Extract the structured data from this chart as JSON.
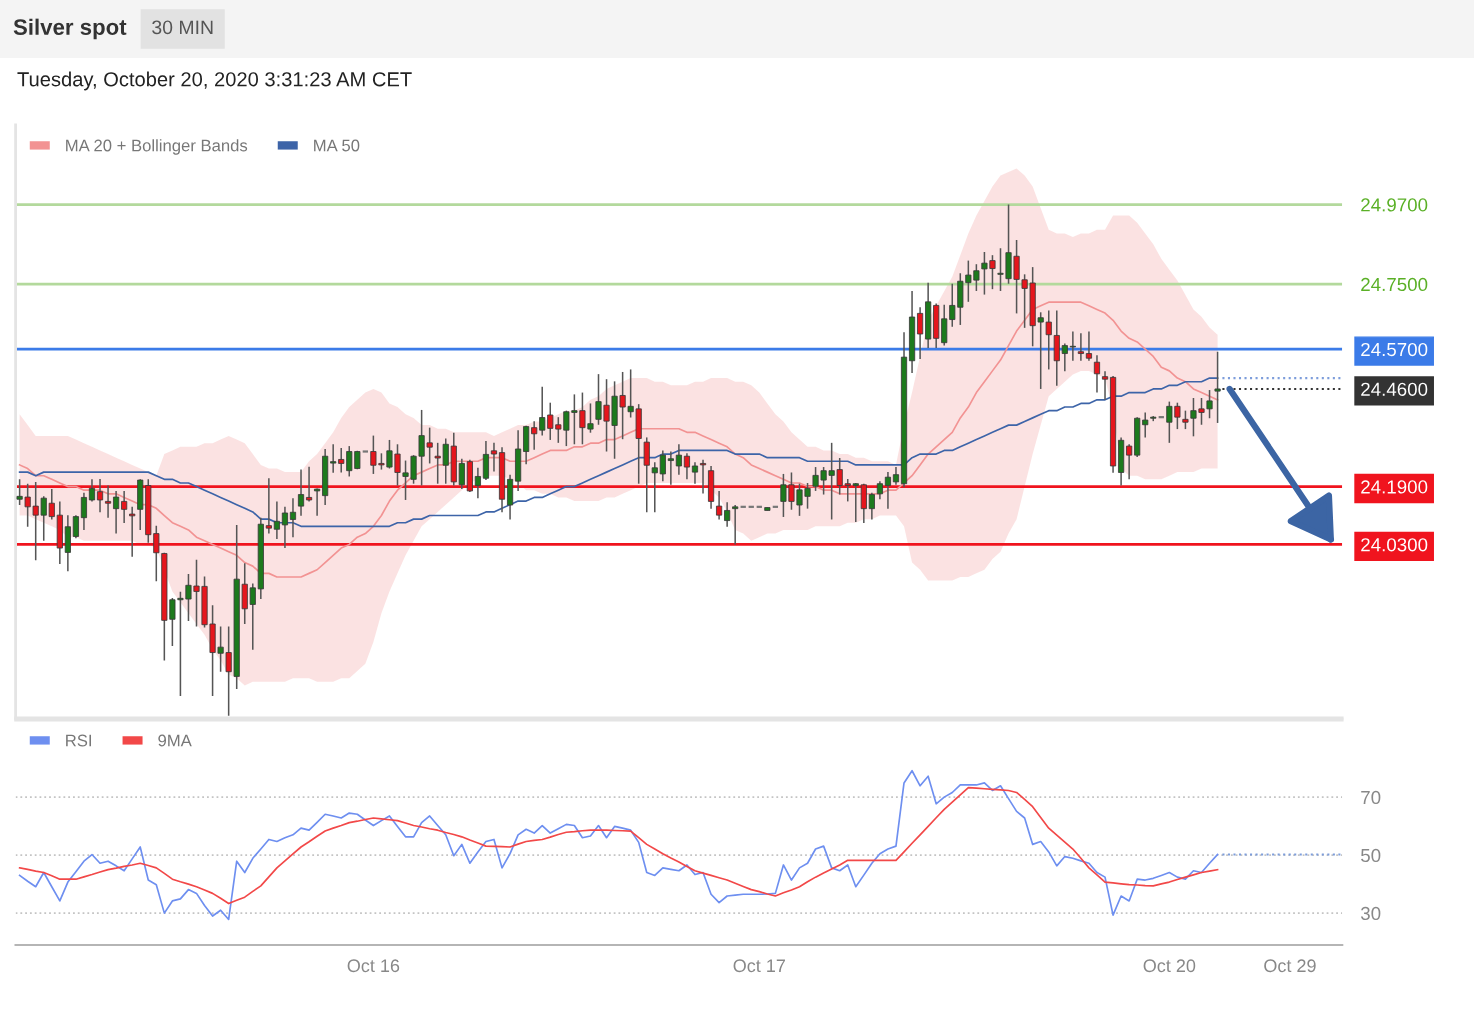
{
  "chart_data": [
    {
      "type": "candlestick",
      "title": "Silver spot",
      "subtitle": "Tuesday, October 20, 2020 3:31:23 AM CET",
      "annotations": [
        "30 MIN"
      ],
      "categories": [
        null,
        null,
        null,
        null,
        null,
        null,
        null,
        null,
        null,
        null,
        null,
        null,
        null,
        null,
        null,
        null,
        null,
        null,
        null,
        null,
        null,
        null,
        null,
        null,
        null,
        null,
        null,
        null,
        null,
        null,
        null,
        null,
        null,
        null,
        null,
        null,
        null,
        null,
        null,
        null,
        null,
        null,
        null,
        null,
        "Oct 16",
        null,
        null,
        null,
        null,
        null,
        null,
        null,
        null,
        null,
        null,
        null,
        null,
        null,
        null,
        null,
        null,
        null,
        null,
        null,
        null,
        null,
        null,
        null,
        null,
        null,
        null,
        null,
        null,
        null,
        null,
        null,
        null,
        null,
        null,
        null,
        null,
        null,
        null,
        null,
        null,
        null,
        null,
        null,
        null,
        null,
        null,
        null,
        "Oct 17",
        null,
        null,
        null,
        null,
        null,
        null,
        null,
        null,
        null,
        null,
        null,
        null,
        null,
        null,
        null,
        null,
        null,
        null,
        null,
        null,
        null,
        null,
        null,
        null,
        null,
        null,
        null,
        null,
        null,
        null,
        null,
        null,
        null,
        null,
        null,
        null,
        null,
        null,
        null,
        null,
        null,
        null,
        null,
        null,
        null,
        null,
        null,
        null,
        null,
        null,
        "Oct 20",
        null,
        null,
        null,
        null,
        null,
        null,
        null,
        null,
        null,
        null,
        null,
        null,
        null,
        null,
        "Oct 29",
        null,
        null,
        null,
        null,
        null,
        null
      ],
      "ohlc": [
        [
          24.155,
          24.21,
          24.139,
          24.163
        ],
        [
          24.161,
          24.198,
          24.079,
          24.134
        ],
        [
          24.136,
          24.203,
          23.986,
          24.111
        ],
        [
          24.111,
          24.163,
          24.04,
          24.158
        ],
        [
          24.144,
          24.183,
          24.099,
          24.107
        ],
        [
          24.111,
          24.149,
          23.976,
          24.02
        ],
        [
          24.008,
          24.111,
          23.956,
          24.079
        ],
        [
          24.052,
          24.111,
          24.047,
          24.107
        ],
        [
          24.104,
          24.173,
          24.07,
          24.16
        ],
        [
          24.153,
          24.21,
          24.149,
          24.185
        ],
        [
          24.176,
          24.211,
          24.119,
          24.153
        ],
        [
          24.149,
          24.193,
          24.104,
          24.144
        ],
        [
          24.129,
          24.178,
          24.06,
          24.161
        ],
        [
          24.149,
          24.178,
          24.089,
          24.127
        ],
        [
          24.114,
          24.134,
          23.996,
          24.109
        ],
        [
          24.127,
          24.21,
          24.07,
          24.208
        ],
        [
          24.193,
          24.21,
          24.035,
          24.057
        ],
        [
          24.06,
          24.082,
          23.928,
          24.007
        ],
        [
          24.005,
          24.007,
          23.709,
          23.82
        ],
        [
          23.823,
          23.882,
          23.749,
          23.877
        ],
        [
          23.877,
          23.899,
          23.611,
          23.881
        ],
        [
          23.879,
          23.948,
          23.818,
          23.917
        ],
        [
          23.915,
          23.988,
          23.803,
          23.9
        ],
        [
          23.914,
          23.941,
          23.8,
          23.808
        ],
        [
          23.81,
          23.862,
          23.611,
          23.731
        ],
        [
          23.729,
          23.803,
          23.678,
          23.746
        ],
        [
          23.731,
          23.803,
          23.556,
          23.678
        ],
        [
          23.665,
          24.084,
          23.63,
          23.934
        ],
        [
          23.92,
          23.978,
          23.81,
          23.852
        ],
        [
          23.864,
          23.922,
          23.739,
          23.91
        ],
        [
          23.907,
          24.104,
          23.879,
          24.086
        ],
        [
          24.082,
          24.213,
          24.06,
          24.075
        ],
        [
          24.072,
          24.149,
          24.045,
          24.094
        ],
        [
          24.084,
          24.134,
          24.02,
          24.117
        ],
        [
          24.099,
          24.158,
          24.05,
          24.119
        ],
        [
          24.136,
          24.237,
          24.109,
          24.168
        ],
        [
          24.16,
          24.245,
          24.149,
          24.153
        ],
        [
          24.178,
          24.185,
          24.109,
          24.183
        ],
        [
          24.165,
          24.294,
          24.139,
          24.274
        ],
        [
          24.255,
          24.307,
          24.228,
          24.259
        ],
        [
          24.265,
          24.297,
          24.229,
          24.254
        ],
        [
          24.234,
          24.302,
          24.218,
          24.287
        ],
        [
          24.24,
          24.289,
          24.238,
          24.287
        ],
        [
          24.287,
          24.287,
          24.287,
          24.287
        ],
        [
          24.287,
          24.331,
          24.225,
          24.249
        ],
        [
          24.254,
          24.282,
          24.237,
          24.25
        ],
        [
          24.244,
          24.319,
          24.24,
          24.289
        ],
        [
          24.28,
          24.307,
          24.193,
          24.229
        ],
        [
          24.218,
          24.262,
          24.153,
          24.228
        ],
        [
          24.21,
          24.277,
          24.198,
          24.274
        ],
        [
          24.274,
          24.402,
          24.193,
          24.331
        ],
        [
          24.311,
          24.353,
          24.254,
          24.299
        ],
        [
          24.274,
          24.311,
          24.198,
          24.269
        ],
        [
          24.249,
          24.323,
          24.198,
          24.307
        ],
        [
          24.302,
          24.339,
          24.193,
          24.203
        ],
        [
          24.195,
          24.267,
          24.183,
          24.254
        ],
        [
          24.259,
          24.264,
          24.175,
          24.178
        ],
        [
          24.193,
          24.242,
          24.158,
          24.218
        ],
        [
          24.213,
          24.316,
          24.208,
          24.279
        ],
        [
          24.289,
          24.311,
          24.232,
          24.28
        ],
        [
          24.284,
          24.299,
          24.119,
          24.155
        ],
        [
          24.139,
          24.223,
          24.099,
          24.21
        ],
        [
          24.205,
          24.346,
          24.178,
          24.294
        ],
        [
          24.287,
          24.358,
          24.252,
          24.356
        ],
        [
          24.353,
          24.371,
          24.292,
          24.336
        ],
        [
          24.346,
          24.466,
          24.331,
          24.381
        ],
        [
          24.388,
          24.422,
          24.319,
          24.351
        ],
        [
          24.361,
          24.382,
          24.311,
          24.349
        ],
        [
          24.346,
          24.4,
          24.302,
          24.397
        ],
        [
          24.395,
          24.445,
          24.307,
          24.4
        ],
        [
          24.4,
          24.45,
          24.307,
          24.353
        ],
        [
          24.349,
          24.42,
          24.339,
          24.364
        ],
        [
          24.376,
          24.501,
          24.361,
          24.425
        ],
        [
          24.415,
          24.487,
          24.287,
          24.371
        ],
        [
          24.359,
          24.481,
          24.267,
          24.44
        ],
        [
          24.442,
          24.507,
          24.321,
          24.41
        ],
        [
          24.397,
          24.514,
          24.381,
          24.412
        ],
        [
          24.405,
          24.418,
          24.198,
          24.323
        ],
        [
          24.313,
          24.326,
          24.119,
          24.249
        ],
        [
          24.228,
          24.257,
          24.119,
          24.242
        ],
        [
          24.225,
          24.29,
          24.205,
          24.277
        ],
        [
          24.262,
          24.287,
          24.195,
          24.267
        ],
        [
          24.247,
          24.307,
          24.223,
          24.277
        ],
        [
          24.274,
          24.282,
          24.21,
          24.244
        ],
        [
          24.23,
          24.257,
          24.198,
          24.247
        ],
        [
          24.254,
          24.264,
          24.171,
          24.25
        ],
        [
          24.234,
          24.247,
          24.129,
          24.149
        ],
        [
          24.136,
          24.178,
          24.099,
          24.111
        ],
        [
          24.096,
          24.147,
          24.079,
          24.124
        ],
        [
          24.129,
          24.139,
          24.03,
          24.134
        ],
        [
          24.134,
          24.134,
          24.134,
          24.134
        ],
        [
          24.134,
          24.134,
          24.134,
          24.134
        ],
        [
          24.134,
          24.134,
          24.134,
          24.134
        ],
        [
          24.124,
          24.132,
          24.124,
          24.132
        ],
        [
          24.134,
          24.134,
          24.134,
          24.134
        ],
        [
          24.149,
          24.225,
          24.106,
          24.195
        ],
        [
          24.195,
          24.229,
          24.126,
          24.149
        ],
        [
          24.139,
          24.198,
          24.109,
          24.181
        ],
        [
          24.163,
          24.2,
          24.129,
          24.185
        ],
        [
          24.191,
          24.244,
          24.178,
          24.221
        ],
        [
          24.208,
          24.244,
          24.168,
          24.234
        ],
        [
          24.221,
          24.311,
          24.099,
          24.234
        ],
        [
          24.237,
          24.269,
          24.168,
          24.193
        ],
        [
          24.198,
          24.211,
          24.149,
          24.193
        ],
        [
          24.193,
          24.2,
          24.092,
          24.198
        ],
        [
          24.195,
          24.198,
          24.089,
          24.129
        ],
        [
          24.129,
          24.173,
          24.099,
          24.168
        ],
        [
          24.17,
          24.205,
          24.155,
          24.198
        ],
        [
          24.193,
          24.23,
          24.129,
          24.216
        ],
        [
          24.203,
          24.244,
          24.195,
          24.223
        ],
        [
          24.198,
          24.617,
          24.188,
          24.548
        ],
        [
          24.538,
          24.731,
          24.504,
          24.659
        ],
        [
          24.669,
          24.686,
          24.543,
          24.612
        ],
        [
          24.598,
          24.754,
          24.573,
          24.701
        ],
        [
          24.691,
          24.696,
          24.573,
          24.6
        ],
        [
          24.588,
          24.693,
          24.58,
          24.654
        ],
        [
          24.652,
          24.751,
          24.632,
          24.691
        ],
        [
          24.686,
          24.78,
          24.637,
          24.758
        ],
        [
          24.754,
          24.815,
          24.701,
          24.775
        ],
        [
          24.761,
          24.805,
          24.731,
          24.787
        ],
        [
          24.792,
          24.839,
          24.721,
          24.808
        ],
        [
          24.815,
          24.83,
          24.736,
          24.793
        ],
        [
          24.777,
          24.849,
          24.731,
          24.78
        ],
        [
          24.765,
          24.97,
          24.751,
          24.837
        ],
        [
          24.827,
          24.872,
          24.669,
          24.763
        ],
        [
          24.762,
          24.777,
          24.629,
          24.738
        ],
        [
          24.753,
          24.797,
          24.578,
          24.635
        ],
        [
          24.645,
          24.672,
          24.46,
          24.657
        ],
        [
          24.645,
          24.677,
          24.514,
          24.61
        ],
        [
          24.608,
          24.677,
          24.469,
          24.538
        ],
        [
          24.558,
          24.586,
          24.509,
          24.58
        ],
        [
          24.576,
          24.619,
          24.538,
          24.578
        ],
        [
          24.563,
          24.614,
          24.538,
          24.558
        ],
        [
          24.558,
          24.619,
          24.538,
          24.545
        ],
        [
          24.534,
          24.553,
          24.45,
          24.502
        ],
        [
          24.494,
          24.509,
          24.43,
          24.487
        ],
        [
          24.492,
          24.496,
          24.228,
          24.247
        ],
        [
          24.229,
          24.326,
          24.193,
          24.318
        ],
        [
          24.302,
          24.307,
          24.21,
          24.277
        ],
        [
          24.277,
          24.382,
          24.272,
          24.379
        ],
        [
          24.361,
          24.395,
          24.326,
          24.374
        ],
        [
          24.379,
          24.385,
          24.371,
          24.382
        ],
        [
          24.382,
          24.382,
          24.382,
          24.382
        ],
        [
          24.368,
          24.425,
          24.311,
          24.412
        ],
        [
          24.412,
          24.422,
          24.349,
          24.382
        ],
        [
          24.376,
          24.4,
          24.349,
          24.368
        ],
        [
          24.379,
          24.435,
          24.329,
          24.4
        ],
        [
          24.405,
          24.435,
          24.361,
          24.395
        ],
        [
          24.405,
          24.457,
          24.379,
          24.427
        ],
        [
          24.454,
          24.563,
          24.366,
          24.46
        ],
        null,
        null,
        null,
        null,
        null,
        null,
        null,
        null,
        null,
        null,
        null,
        null,
        null,
        null,
        null
      ],
      "series": [
        {
          "name": "MA 20 + Bollinger Bands",
          "type": "line",
          "color": "#f29393",
          "values": [
            24.25,
            24.24,
            24.22,
            24.22,
            24.21,
            24.2,
            24.19,
            24.19,
            24.18,
            24.18,
            24.18,
            24.17,
            24.17,
            24.16,
            24.15,
            24.14,
            24.14,
            24.13,
            24.11,
            24.09,
            24.08,
            24.07,
            24.05,
            24.04,
            24.03,
            24.02,
            24.01,
            24.0,
            23.98,
            23.97,
            23.95,
            23.95,
            23.94,
            23.94,
            23.94,
            23.94,
            23.95,
            23.96,
            23.98,
            24.0,
            24.02,
            24.03,
            24.05,
            24.06,
            24.08,
            24.11,
            24.15,
            24.18,
            24.2,
            24.22,
            24.23,
            24.24,
            24.25,
            24.25,
            24.26,
            24.26,
            24.26,
            24.26,
            24.27,
            24.27,
            24.27,
            24.26,
            24.26,
            24.26,
            24.27,
            24.28,
            24.29,
            24.29,
            24.29,
            24.3,
            24.3,
            24.31,
            24.31,
            24.32,
            24.32,
            24.33,
            24.34,
            24.35,
            24.35,
            24.35,
            24.35,
            24.35,
            24.35,
            24.34,
            24.34,
            24.33,
            24.32,
            24.31,
            24.3,
            24.28,
            24.27,
            24.25,
            24.24,
            24.23,
            24.22,
            24.21,
            24.2,
            24.2,
            24.19,
            24.19,
            24.18,
            24.18,
            24.17,
            24.17,
            24.17,
            24.17,
            24.17,
            24.17,
            24.18,
            24.18,
            24.2,
            24.22,
            24.25,
            24.28,
            24.3,
            24.32,
            24.34,
            24.38,
            24.41,
            24.45,
            24.48,
            24.51,
            24.54,
            24.58,
            24.62,
            24.65,
            24.68,
            24.69,
            24.7,
            24.7,
            24.7,
            24.7,
            24.7,
            24.69,
            24.68,
            24.67,
            24.65,
            24.62,
            24.6,
            24.59,
            24.57,
            24.55,
            24.52,
            24.51,
            24.49,
            24.48,
            24.46,
            24.45,
            24.44,
            24.43,
            null,
            null,
            null,
            null,
            null,
            null,
            null,
            null,
            null,
            null,
            null,
            null,
            null,
            null,
            null
          ],
          "lower": [
            24.11,
            24.11,
            24.1,
            24.09,
            24.08,
            24.07,
            24.05,
            24.05,
            24.04,
            24.04,
            24.04,
            24.04,
            24.04,
            24.04,
            24.04,
            24.03,
            24.03,
            24.02,
            23.96,
            23.9,
            23.87,
            23.84,
            23.81,
            23.78,
            23.74,
            23.71,
            23.67,
            23.66,
            23.64,
            23.65,
            23.65,
            23.65,
            23.65,
            23.65,
            23.66,
            23.66,
            23.66,
            23.65,
            23.65,
            23.65,
            23.66,
            23.66,
            23.68,
            23.7,
            23.76,
            23.84,
            23.9,
            23.95,
            24.0,
            24.04,
            24.08,
            24.1,
            24.12,
            24.14,
            24.16,
            24.18,
            24.2,
            24.21,
            24.22,
            24.22,
            24.22,
            24.21,
            24.2,
            24.18,
            24.18,
            24.17,
            24.17,
            24.16,
            24.16,
            24.15,
            24.15,
            24.15,
            24.15,
            24.16,
            24.16,
            24.17,
            24.18,
            24.19,
            24.2,
            24.2,
            24.2,
            24.2,
            24.2,
            24.2,
            24.2,
            24.2,
            24.18,
            24.16,
            24.12,
            24.07,
            24.06,
            24.04,
            24.05,
            24.06,
            24.06,
            24.07,
            24.07,
            24.07,
            24.07,
            24.08,
            24.08,
            24.08,
            24.08,
            24.09,
            24.09,
            24.1,
            24.1,
            24.11,
            24.11,
            24.11,
            24.08,
            23.98,
            23.96,
            23.93,
            23.93,
            23.93,
            23.93,
            23.94,
            23.94,
            23.95,
            23.96,
            23.99,
            24.01,
            24.06,
            24.1,
            24.19,
            24.28,
            24.36,
            24.44,
            24.46,
            24.48,
            24.5,
            24.51,
            24.51,
            24.5,
            24.49,
            24.4,
            24.24,
            24.22,
            24.22,
            24.21,
            24.21,
            24.21,
            24.22,
            24.23,
            24.23,
            24.23,
            24.24,
            24.24,
            24.24,
            null,
            null,
            null,
            null,
            null,
            null,
            null,
            null,
            null,
            null,
            null,
            null,
            null,
            null,
            null
          ],
          "upper": [
            24.39,
            24.36,
            24.33,
            24.33,
            24.33,
            24.33,
            24.33,
            24.32,
            24.31,
            24.3,
            24.29,
            24.28,
            24.27,
            24.26,
            24.25,
            24.24,
            24.23,
            24.22,
            24.28,
            24.29,
            24.3,
            24.3,
            24.3,
            24.31,
            24.31,
            24.32,
            24.33,
            24.32,
            24.31,
            24.28,
            24.25,
            24.24,
            24.24,
            24.23,
            24.23,
            24.23,
            24.26,
            24.28,
            24.31,
            24.34,
            24.38,
            24.41,
            24.43,
            24.45,
            24.46,
            24.45,
            24.42,
            24.41,
            24.39,
            24.38,
            24.36,
            24.36,
            24.35,
            24.35,
            24.34,
            24.34,
            24.34,
            24.34,
            24.34,
            24.33,
            24.34,
            24.35,
            24.36,
            24.36,
            24.37,
            24.37,
            24.38,
            24.39,
            24.4,
            24.4,
            24.41,
            24.43,
            24.44,
            24.46,
            24.47,
            24.48,
            24.49,
            24.49,
            24.49,
            24.48,
            24.48,
            24.47,
            24.47,
            24.47,
            24.48,
            24.48,
            24.49,
            24.49,
            24.49,
            24.48,
            24.48,
            24.47,
            24.45,
            24.42,
            24.39,
            24.37,
            24.34,
            24.32,
            24.3,
            24.3,
            24.29,
            24.29,
            24.28,
            24.28,
            24.27,
            24.27,
            24.26,
            24.26,
            24.26,
            24.25,
            24.36,
            24.45,
            24.55,
            24.65,
            24.69,
            24.73,
            24.77,
            24.83,
            24.89,
            24.94,
            24.98,
            25.02,
            25.05,
            25.06,
            25.07,
            25.05,
            25.02,
            24.96,
            24.9,
            24.89,
            24.89,
            24.88,
            24.89,
            24.89,
            24.9,
            24.9,
            24.94,
            24.94,
            24.94,
            24.92,
            24.89,
            24.86,
            24.82,
            24.79,
            24.76,
            24.72,
            24.68,
            24.66,
            24.63,
            24.61,
            null,
            null,
            null,
            null,
            null,
            null,
            null,
            null,
            null,
            null,
            null,
            null,
            null,
            null,
            null
          ]
        },
        {
          "name": "MA 50",
          "type": "line",
          "color": "#3d64a8",
          "values": [
            24.23,
            24.23,
            24.22,
            24.23,
            24.23,
            24.23,
            24.23,
            24.23,
            24.23,
            24.23,
            24.23,
            24.23,
            24.23,
            24.23,
            24.23,
            24.23,
            24.23,
            24.22,
            24.21,
            24.21,
            24.2,
            24.2,
            24.19,
            24.18,
            24.17,
            24.16,
            24.15,
            24.14,
            24.13,
            24.12,
            24.1,
            24.1,
            24.09,
            24.09,
            24.09,
            24.08,
            24.08,
            24.08,
            24.08,
            24.08,
            24.08,
            24.08,
            24.08,
            24.08,
            24.08,
            24.08,
            24.08,
            24.09,
            24.09,
            24.1,
            24.1,
            24.11,
            24.11,
            24.11,
            24.11,
            24.11,
            24.11,
            24.11,
            24.12,
            24.12,
            24.13,
            24.14,
            24.15,
            24.15,
            24.16,
            24.16,
            24.17,
            24.18,
            24.19,
            24.19,
            24.2,
            24.21,
            24.22,
            24.23,
            24.24,
            24.25,
            24.26,
            24.27,
            24.27,
            24.27,
            24.28,
            24.28,
            24.29,
            24.29,
            24.29,
            24.29,
            24.29,
            24.29,
            24.29,
            24.28,
            24.28,
            24.28,
            24.28,
            24.27,
            24.27,
            24.27,
            24.27,
            24.27,
            24.26,
            24.26,
            24.26,
            24.26,
            24.26,
            24.26,
            24.25,
            24.25,
            24.25,
            24.25,
            24.25,
            24.25,
            24.25,
            24.27,
            24.28,
            24.28,
            24.28,
            24.29,
            24.29,
            24.3,
            24.31,
            24.32,
            24.33,
            24.34,
            24.35,
            24.36,
            24.36,
            24.37,
            24.38,
            24.39,
            24.4,
            24.4,
            24.41,
            24.41,
            24.42,
            24.42,
            24.43,
            24.43,
            24.44,
            24.44,
            24.45,
            24.45,
            24.45,
            24.46,
            24.46,
            24.47,
            24.47,
            24.48,
            24.48,
            24.48,
            24.49,
            24.49,
            null,
            null,
            null,
            null,
            null,
            null,
            null,
            null,
            null,
            null,
            null,
            null,
            null,
            null,
            null
          ]
        }
      ],
      "ref_lines": [
        {
          "axis": "y",
          "value": 24.97,
          "color": "#b3d99c",
          "line_style": "solid"
        },
        {
          "axis": "y",
          "value": 24.75,
          "color": "#b3d99c",
          "line_style": "solid"
        },
        {
          "axis": "y",
          "value": 24.57,
          "color": "#3b7be8",
          "line_style": "solid"
        },
        {
          "axis": "y",
          "value": 24.49,
          "color": "#7d9ddb",
          "line_style": "dotted"
        },
        {
          "axis": "y",
          "value": 24.46,
          "color": "#333333",
          "line_style": "dotted"
        },
        {
          "axis": "y",
          "value": 24.19,
          "color": "#f0141e",
          "line_style": "solid"
        },
        {
          "axis": "y",
          "value": 24.03,
          "color": "#f0141e",
          "line_style": "solid"
        }
      ],
      "ylim": [
        23.55,
        25.19
      ],
      "yticks": [
        {
          "value": 24.03,
          "label": "24.0300"
        },
        {
          "value": 24.19,
          "label": "24.1900"
        },
        {
          "value": 24.46,
          "label": "24.4600"
        },
        {
          "value": 24.57,
          "label": "24.5700"
        },
        {
          "value": 24.75,
          "label": "24.7500"
        },
        {
          "value": 24.97,
          "label": "24.9700"
        }
      ],
      "tick_labels": "y",
      "legend": "top left"
    },
    {
      "type": "line",
      "categories": [
        null,
        null,
        null,
        null,
        null,
        null,
        null,
        null,
        null,
        null,
        null,
        null,
        null,
        null,
        null,
        null,
        null,
        null,
        null,
        null,
        null,
        null,
        null,
        null,
        null,
        null,
        null,
        null,
        null,
        null,
        null,
        null,
        null,
        null,
        null,
        null,
        null,
        null,
        null,
        null,
        null,
        null,
        null,
        null,
        "Oct 16",
        null,
        null,
        null,
        null,
        null,
        null,
        null,
        null,
        null,
        null,
        null,
        null,
        null,
        null,
        null,
        null,
        null,
        null,
        null,
        null,
        null,
        null,
        null,
        null,
        null,
        null,
        null,
        null,
        null,
        null,
        null,
        null,
        null,
        null,
        null,
        null,
        null,
        null,
        null,
        null,
        null,
        null,
        null,
        null,
        null,
        null,
        null,
        "Oct 17",
        null,
        null,
        null,
        null,
        null,
        null,
        null,
        null,
        null,
        null,
        null,
        null,
        null,
        null,
        null,
        null,
        null,
        null,
        null,
        null,
        null,
        null,
        null,
        null,
        null,
        null,
        null,
        null,
        null,
        null,
        null,
        null,
        null,
        null,
        null,
        null,
        null,
        null,
        null,
        null,
        null,
        null,
        null,
        null,
        null,
        null,
        null,
        null,
        null,
        null,
        "Oct 20",
        null,
        null,
        null,
        null,
        null,
        null,
        null,
        null,
        null,
        null,
        null,
        null,
        null,
        null,
        "Oct 29",
        null,
        null,
        null,
        null,
        null,
        null
      ],
      "series": [
        {
          "name": "RSI",
          "type": "line",
          "color": "#6e8ff0",
          "values": [
            43.0,
            41.0,
            39.1,
            44.0,
            39.1,
            34.2,
            40.7,
            44.3,
            47.9,
            50.2,
            47.2,
            47.9,
            46.3,
            44.6,
            48.7,
            52.8,
            41.4,
            39.8,
            30.0,
            34.2,
            34.9,
            38.1,
            36.8,
            32.6,
            29.0,
            31.0,
            27.8,
            47.9,
            44.0,
            48.9,
            52.1,
            55.4,
            54.7,
            56.0,
            57.0,
            59.3,
            58.6,
            61.3,
            64.1,
            63.5,
            62.8,
            64.5,
            64.1,
            62.1,
            60.2,
            61.9,
            63.5,
            59.9,
            56.3,
            56.3,
            61.2,
            63.5,
            60.2,
            57.0,
            49.8,
            53.7,
            47.2,
            51.1,
            54.7,
            55.4,
            45.6,
            50.5,
            57.0,
            58.9,
            57.6,
            60.2,
            57.6,
            59.1,
            60.6,
            60.2,
            56.0,
            56.6,
            60.2,
            56.0,
            59.9,
            59.3,
            58.6,
            54.4,
            44.0,
            43.0,
            45.6,
            45.1,
            44.6,
            46.6,
            43.3,
            44.0,
            36.5,
            33.6,
            35.9,
            36.2,
            36.5,
            36.5,
            36.5,
            36.6,
            36.8,
            46.6,
            41.4,
            45.6,
            47.2,
            52.1,
            53.1,
            45.6,
            44.6,
            46.6,
            39.1,
            43.1,
            47.2,
            50.5,
            52.1,
            53.1,
            74.9,
            79.1,
            73.9,
            77.2,
            67.7,
            70.0,
            71.6,
            74.2,
            74.2,
            74.2,
            74.9,
            72.3,
            73.9,
            69.5,
            65.1,
            62.8,
            53.7,
            54.7,
            51.1,
            46.3,
            49.5,
            48.9,
            48.0,
            47.2,
            44.0,
            42.4,
            29.3,
            35.9,
            34.2,
            41.7,
            41.4,
            42.0,
            43.0,
            44.0,
            42.4,
            41.7,
            44.6,
            44.0,
            47.2,
            50.2,
            null,
            null,
            null,
            null,
            null,
            null,
            null,
            null,
            null,
            null,
            null,
            null,
            null,
            null,
            null
          ]
        },
        {
          "name": "9MA",
          "type": "line",
          "color": "#f24848",
          "values": [
            45.6,
            45.1,
            44.5,
            44.0,
            42.9,
            41.7,
            41.7,
            41.7,
            42.5,
            43.3,
            44.2,
            45.0,
            45.5,
            46.1,
            46.6,
            47.2,
            46.4,
            45.6,
            43.7,
            41.7,
            40.8,
            40.0,
            39.1,
            38.0,
            36.8,
            35.1,
            33.3,
            34.4,
            35.5,
            37.5,
            39.4,
            42.5,
            45.6,
            48.0,
            50.4,
            52.8,
            54.6,
            56.5,
            58.3,
            59.3,
            60.2,
            61.2,
            61.7,
            62.3,
            62.8,
            62.5,
            62.2,
            61.9,
            61.1,
            60.2,
            59.7,
            59.1,
            58.6,
            57.8,
            57.1,
            56.3,
            55.2,
            54.2,
            53.1,
            53.0,
            52.9,
            52.8,
            53.8,
            54.7,
            55.1,
            55.4,
            56.2,
            57.1,
            57.9,
            58.1,
            58.4,
            58.6,
            58.6,
            58.6,
            58.5,
            58.4,
            58.3,
            56.0,
            53.7,
            52.1,
            50.5,
            49.0,
            47.6,
            46.1,
            44.6,
            43.8,
            43.0,
            42.2,
            41.4,
            40.3,
            39.2,
            38.1,
            37.4,
            36.6,
            35.9,
            37.0,
            38.0,
            39.1,
            40.8,
            42.4,
            43.8,
            45.2,
            46.6,
            48.2,
            48.2,
            48.2,
            48.2,
            48.2,
            48.2,
            48.2,
            51.1,
            54.1,
            57.0,
            59.9,
            62.9,
            65.8,
            68.3,
            70.8,
            73.3,
            73.1,
            72.9,
            72.7,
            72.5,
            72.3,
            71.6,
            69.2,
            66.7,
            63.0,
            59.3,
            56.9,
            54.5,
            52.1,
            48.9,
            45.6,
            43.2,
            40.7,
            40.4,
            40.1,
            39.8,
            39.7,
            39.5,
            39.4,
            40.1,
            40.7,
            41.6,
            42.4,
            43.2,
            44.0,
            44.5,
            45.0,
            null,
            null,
            null,
            null,
            null,
            null,
            null,
            null,
            null,
            null,
            null,
            null,
            null,
            null,
            null
          ]
        }
      ],
      "ref_lines": [
        {
          "axis": "y",
          "value": 50.2,
          "color": "#7d9ddb",
          "line_style": "dotted"
        }
      ],
      "ylim": [
        19,
        96.6
      ],
      "yticks": [
        30,
        50,
        70
      ],
      "grid": "y",
      "legend": "top left"
    }
  ]
}
